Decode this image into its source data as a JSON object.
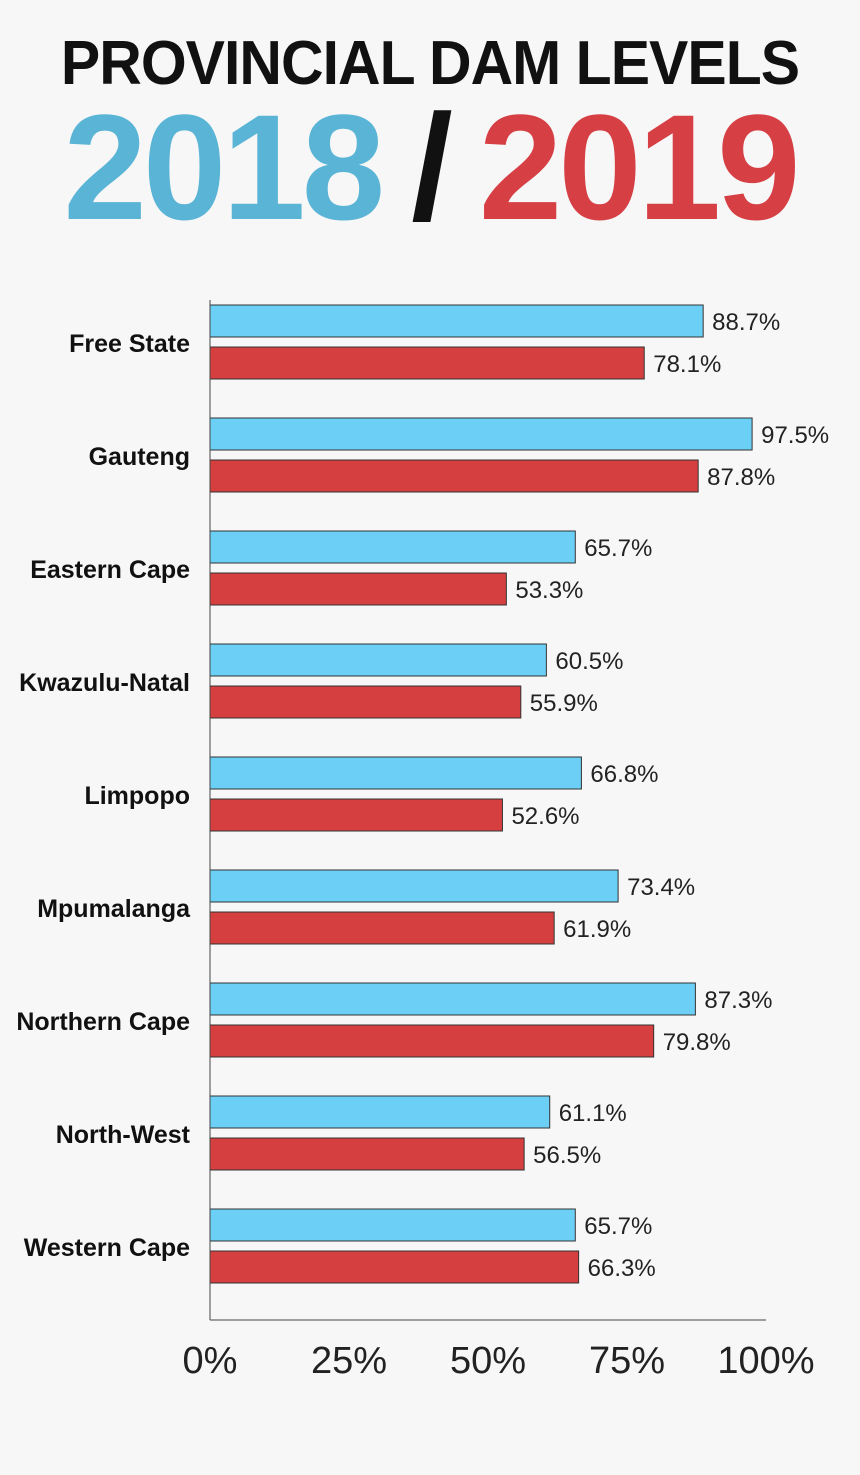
{
  "title": "PROVINCIAL DAM LEVELS",
  "year_a": "2018",
  "separator": "/",
  "year_b": "2019",
  "colors": {
    "year_a": "#6bcff6",
    "year_b": "#d63f3f",
    "outline": "#333333"
  },
  "chart_data": {
    "type": "bar",
    "orientation": "horizontal",
    "categories": [
      "Free State",
      "Gauteng",
      "Eastern Cape",
      "Kwazulu-Natal",
      "Limpopo",
      "Mpumalanga",
      "Northern Cape",
      "North-West",
      "Western Cape"
    ],
    "series": [
      {
        "name": "2018",
        "values": [
          88.7,
          97.5,
          65.7,
          60.5,
          66.8,
          73.4,
          87.3,
          61.1,
          65.7
        ]
      },
      {
        "name": "2019",
        "values": [
          78.1,
          87.8,
          53.3,
          55.9,
          52.6,
          61.9,
          79.8,
          56.5,
          66.3
        ]
      }
    ],
    "value_labels_2018": [
      "88.7%",
      "97.5%",
      "65.7%",
      "60.5%",
      "66.8%",
      "73.4%",
      "87.3%",
      "61.1%",
      "65.7%"
    ],
    "value_labels_2019": [
      "78.1%",
      "87.8%",
      "53.3%",
      "55.9%",
      "52.6%",
      "61.9%",
      "79.8%",
      "56.5%",
      "66.3%"
    ],
    "xlim": [
      0,
      100
    ],
    "xticks": [
      0,
      25,
      50,
      75,
      100
    ],
    "xtick_labels": [
      "0%",
      "25%",
      "50%",
      "75%",
      "100%"
    ],
    "xlabel": "",
    "ylabel": "",
    "grid": false,
    "legend": "none"
  }
}
